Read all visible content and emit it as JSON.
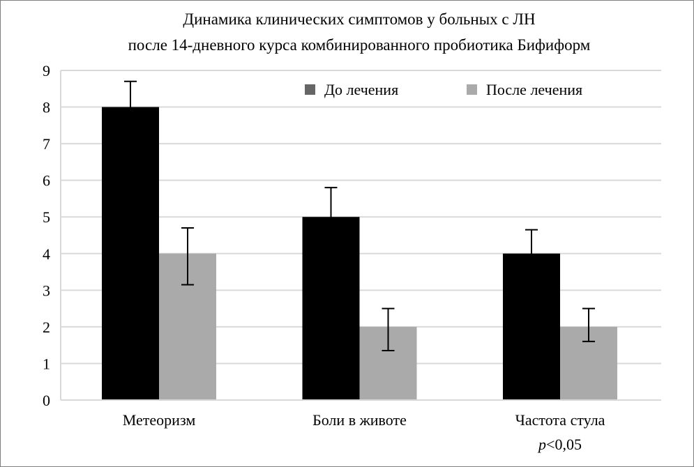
{
  "chart_data": {
    "type": "bar",
    "title": [
      "Динамика клинических симптомов у больных с ЛН",
      "после 14-дневного курса комбинированного пробиотика Бифиформ"
    ],
    "categories": [
      "Метеоризм",
      "Боли в животе",
      "Частота стула"
    ],
    "series": [
      {
        "name": "До лечения",
        "values": [
          8,
          5,
          4
        ],
        "error_upper": [
          8.7,
          5.8,
          4.65
        ],
        "error_lower": [
          7.3,
          4.2,
          3.35
        ],
        "color": "#000000",
        "legend_color": "#666666"
      },
      {
        "name": "После лечения",
        "values": [
          4,
          2,
          2
        ],
        "error_upper": [
          4.7,
          2.5,
          2.5
        ],
        "error_lower": [
          3.15,
          1.35,
          1.6
        ],
        "color": "#aaaaaa",
        "legend_color": "#aaaaaa"
      }
    ],
    "ylim": [
      0,
      9
    ],
    "yticks": [
      0,
      1,
      2,
      3,
      4,
      5,
      6,
      7,
      8,
      9
    ],
    "grid": true,
    "legend_position": "top-right",
    "annotation": "p<0,05",
    "annotation_parts": {
      "italic": "p",
      "rest": "<0,05"
    },
    "xlabel": "",
    "ylabel": ""
  }
}
